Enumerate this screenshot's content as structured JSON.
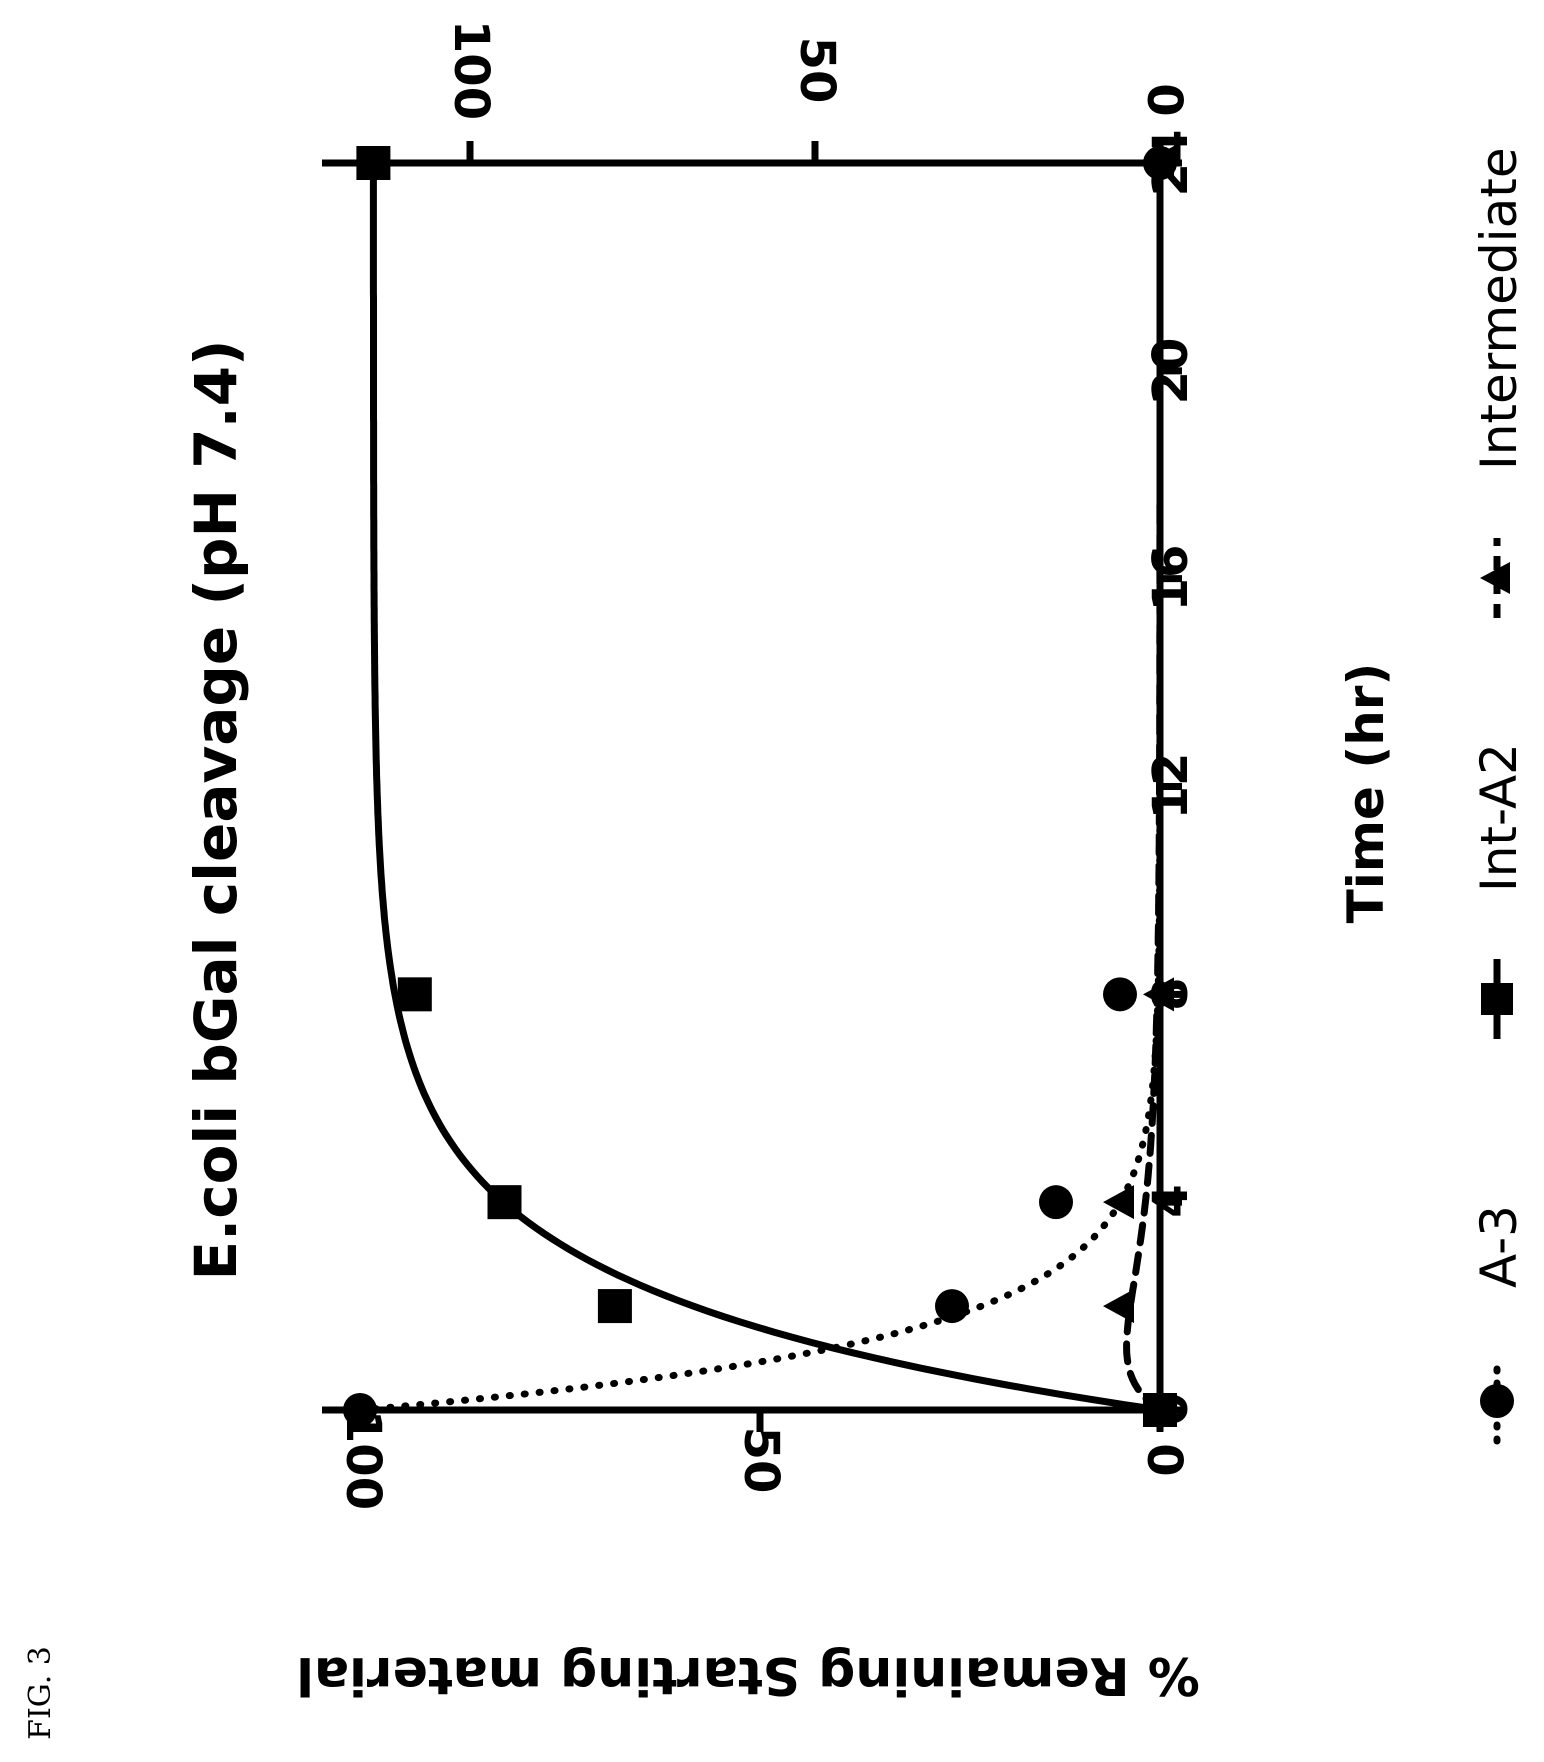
{
  "figure_label": "FIG. 3",
  "chart_data": {
    "type": "line",
    "title": "E.coli bGal cleavage (pH 7.4)",
    "xlabel": "Time (hr)",
    "ylabel": "% Remaining Starting material",
    "x_ticks": [
      "0",
      "4",
      "8",
      "12",
      "16",
      "20",
      "24"
    ],
    "y_ticks": [
      "0",
      "50",
      "100"
    ],
    "y2_ticks": [
      "0",
      "50",
      "100"
    ],
    "xlim": [
      0,
      24
    ],
    "ylim": [
      0,
      100
    ],
    "y2lim": [
      0,
      100
    ],
    "orientation": "rotated 90 degrees clockwise",
    "legend_position": "bottom",
    "grid": false,
    "series": [
      {
        "name": "A-3",
        "marker": "circle",
        "line_style": "dotted",
        "axis": "left",
        "color": "#000000",
        "points": [
          [
            0,
            100
          ],
          [
            2,
            26
          ],
          [
            4,
            13
          ],
          [
            8,
            5
          ],
          [
            24,
            0
          ]
        ]
      },
      {
        "name": "Int-A2",
        "marker": "square",
        "line_style": "solid",
        "axis": "right",
        "color": "#000000",
        "points": [
          [
            0,
            0
          ],
          [
            2,
            79
          ],
          [
            4,
            95
          ],
          [
            8,
            108
          ],
          [
            24,
            114
          ]
        ]
      },
      {
        "name": "Intermediate",
        "marker": "triangle",
        "line_style": "dashed",
        "axis": "left",
        "color": "#000000",
        "points": [
          [
            0,
            0
          ],
          [
            2,
            5
          ],
          [
            4,
            5
          ],
          [
            8,
            0
          ],
          [
            24,
            0
          ]
        ]
      }
    ]
  }
}
